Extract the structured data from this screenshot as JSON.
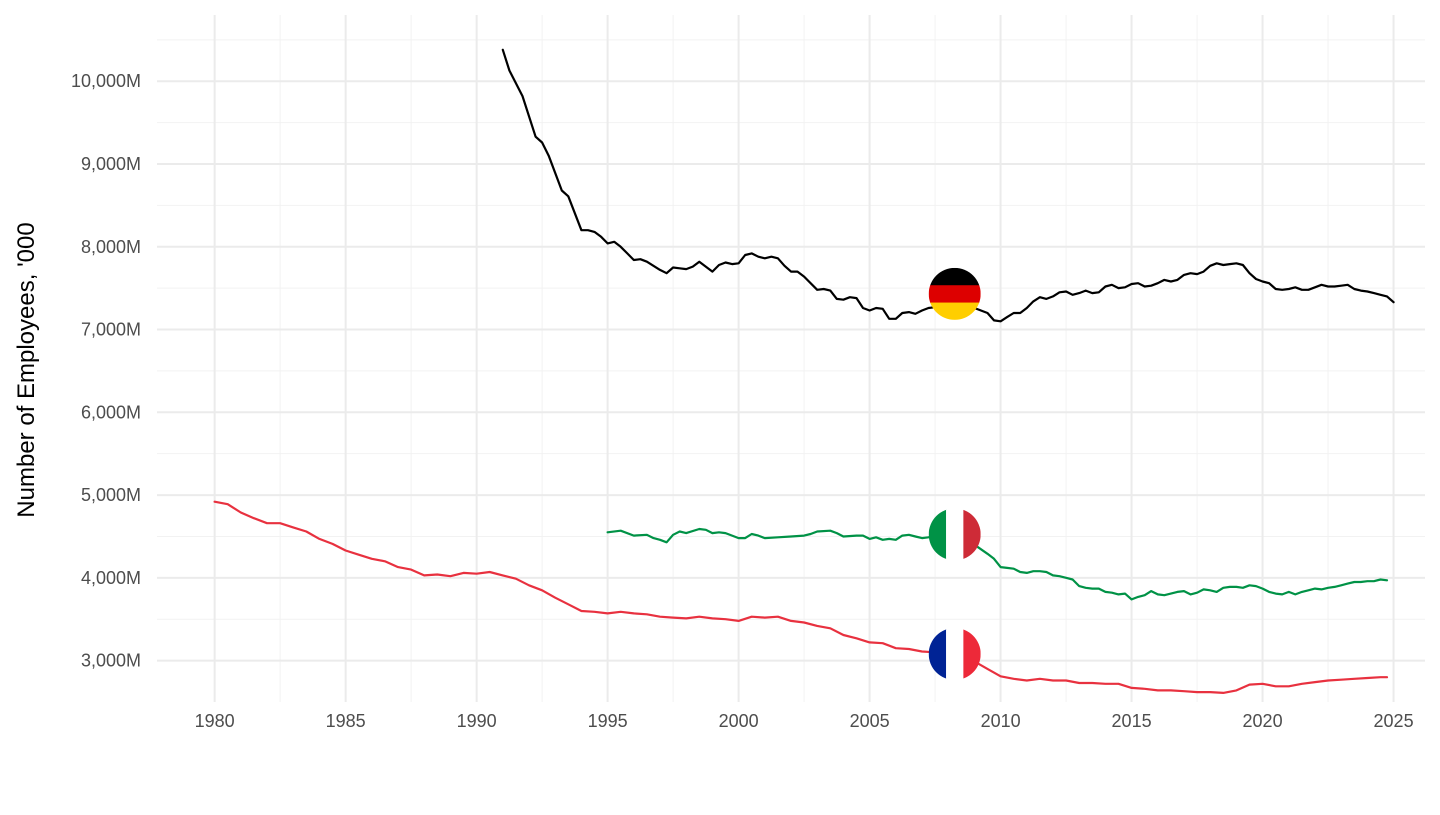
{
  "chart_data": {
    "type": "line",
    "title": "",
    "xlabel": "",
    "ylabel": "Number of Employees, '000",
    "xlim": [
      1977.8,
      2026.2
    ],
    "ylim": [
      2500,
      10800
    ],
    "x_ticks": [
      1980,
      1985,
      1990,
      1995,
      2000,
      2005,
      2010,
      2015,
      2020,
      2025
    ],
    "x_tick_labels": [
      "1980",
      "1985",
      "1990",
      "1995",
      "2000",
      "2005",
      "2010",
      "2015",
      "2020",
      "2025"
    ],
    "y_ticks": [
      3000,
      4000,
      5000,
      6000,
      7000,
      8000,
      9000,
      10000
    ],
    "y_tick_labels": [
      "3,000M",
      "4,000M",
      "5,000M",
      "6,000M",
      "7,000M",
      "8,000M",
      "9,000M",
      "10,000M"
    ],
    "grid": true,
    "legend": "none",
    "series": [
      {
        "color": "#000000",
        "flag": "germany-flag-icon",
        "flag_position": [
          2008.25,
          7430
        ],
        "x": [
          1991,
          1991.25,
          1991.75,
          1992.25,
          1992.5,
          1992.75,
          1993.25,
          1993.5,
          1994,
          1994.25,
          1994.5,
          1994.75,
          1995,
          1995.25,
          1995.5,
          1995.75,
          1996,
          1996.25,
          1996.5,
          1997,
          1997.25,
          1997.5,
          1997.75,
          1998,
          1998.25,
          1998.5,
          1999,
          1999.25,
          1999.5,
          1999.75,
          2000,
          2000.25,
          2000.5,
          2000.75,
          2001,
          2001.25,
          2001.5,
          2001.75,
          2002,
          2002.25,
          2002.5,
          2003,
          2003.25,
          2003.5,
          2003.75,
          2004,
          2004.25,
          2004.5,
          2004.75,
          2005,
          2005.25,
          2005.5,
          2005.75,
          2006,
          2006.25,
          2006.5,
          2006.75,
          2007,
          2007.25,
          2007.5,
          2007.75,
          2008,
          2008.5,
          2009,
          2009.5,
          2009.75,
          2010,
          2010.25,
          2010.5,
          2010.75,
          2011,
          2011.25,
          2011.5,
          2011.75,
          2012,
          2012.25,
          2012.5,
          2012.75,
          2013,
          2013.25,
          2013.5,
          2013.75,
          2014,
          2014.25,
          2014.5,
          2014.75,
          2015,
          2015.25,
          2015.5,
          2015.75,
          2016,
          2016.25,
          2016.5,
          2016.75,
          2017,
          2017.25,
          2017.5,
          2017.75,
          2018,
          2018.25,
          2018.5,
          2018.75,
          2019,
          2019.25,
          2019.5,
          2019.75,
          2020,
          2020.25,
          2020.5,
          2020.75,
          2021,
          2021.25,
          2021.5,
          2021.75,
          2022,
          2022.25,
          2022.5,
          2022.75,
          2023,
          2023.25,
          2023.5,
          2023.75,
          2024,
          2024.25,
          2024.5,
          2024.75,
          2025
        ],
        "values": [
          10380,
          10130,
          9820,
          9330,
          9260,
          9100,
          8680,
          8610,
          8200,
          8200,
          8180,
          8120,
          8040,
          8060,
          8000,
          7920,
          7840,
          7850,
          7820,
          7720,
          7680,
          7750,
          7740,
          7730,
          7760,
          7820,
          7700,
          7780,
          7810,
          7790,
          7800,
          7900,
          7920,
          7880,
          7860,
          7880,
          7860,
          7770,
          7700,
          7700,
          7640,
          7480,
          7490,
          7470,
          7370,
          7360,
          7390,
          7380,
          7260,
          7230,
          7260,
          7250,
          7130,
          7130,
          7200,
          7210,
          7190,
          7230,
          7260,
          7270,
          7360,
          7380,
          7330,
          7260,
          7200,
          7110,
          7100,
          7150,
          7200,
          7200,
          7260,
          7340,
          7390,
          7370,
          7400,
          7450,
          7460,
          7420,
          7440,
          7470,
          7440,
          7450,
          7520,
          7540,
          7500,
          7510,
          7550,
          7560,
          7520,
          7530,
          7560,
          7600,
          7580,
          7600,
          7660,
          7680,
          7670,
          7700,
          7770,
          7800,
          7780,
          7790,
          7800,
          7780,
          7680,
          7610,
          7580,
          7560,
          7490,
          7480,
          7490,
          7510,
          7480,
          7480,
          7510,
          7540,
          7520,
          7520,
          7530,
          7540,
          7490,
          7470,
          7460,
          7440,
          7420,
          7400,
          7330
        ]
      },
      {
        "color": "#009246",
        "flag": "italy-flag-icon",
        "flag_position": [
          2008.25,
          4525
        ],
        "x": [
          1995,
          1995.5,
          1996,
          1996.5,
          1996.75,
          1997,
          1997.25,
          1997.5,
          1997.75,
          1998,
          1998.5,
          1998.75,
          1999,
          1999.25,
          1999.5,
          1999.75,
          2000,
          2000.25,
          2000.5,
          2000.75,
          2001,
          2001.5,
          2002,
          2002.5,
          2002.75,
          2003,
          2003.5,
          2003.75,
          2004,
          2004.5,
          2004.75,
          2005,
          2005.25,
          2005.5,
          2005.75,
          2006,
          2006.25,
          2006.5,
          2006.75,
          2007,
          2007.25,
          2007.5,
          2007.75,
          2008,
          2008.5,
          2009,
          2009.5,
          2009.75,
          2010,
          2010.25,
          2010.5,
          2010.75,
          2011,
          2011.25,
          2011.5,
          2011.75,
          2012,
          2012.25,
          2012.5,
          2012.75,
          2013,
          2013.25,
          2013.5,
          2013.75,
          2014,
          2014.25,
          2014.5,
          2014.75,
          2015,
          2015.25,
          2015.5,
          2015.75,
          2016,
          2016.25,
          2016.5,
          2016.75,
          2017,
          2017.25,
          2017.5,
          2017.75,
          2018,
          2018.25,
          2018.5,
          2018.75,
          2019,
          2019.25,
          2019.5,
          2019.75,
          2020,
          2020.25,
          2020.5,
          2020.75,
          2021,
          2021.25,
          2021.5,
          2021.75,
          2022,
          2022.25,
          2022.5,
          2022.75,
          2023,
          2023.25,
          2023.5,
          2023.75,
          2024,
          2024.25,
          2024.5,
          2024.75
        ],
        "values": [
          4550,
          4570,
          4510,
          4520,
          4480,
          4460,
          4430,
          4520,
          4560,
          4540,
          4590,
          4580,
          4540,
          4550,
          4540,
          4510,
          4480,
          4480,
          4530,
          4510,
          4480,
          4490,
          4500,
          4510,
          4530,
          4560,
          4570,
          4540,
          4500,
          4510,
          4510,
          4470,
          4490,
          4460,
          4470,
          4460,
          4510,
          4520,
          4500,
          4480,
          4490,
          4510,
          4500,
          4530,
          4480,
          4400,
          4290,
          4230,
          4130,
          4120,
          4110,
          4070,
          4060,
          4080,
          4080,
          4070,
          4030,
          4020,
          4000,
          3980,
          3900,
          3880,
          3870,
          3870,
          3830,
          3820,
          3800,
          3810,
          3740,
          3770,
          3790,
          3840,
          3800,
          3790,
          3810,
          3830,
          3840,
          3800,
          3820,
          3860,
          3850,
          3830,
          3880,
          3890,
          3890,
          3880,
          3910,
          3900,
          3870,
          3830,
          3810,
          3800,
          3830,
          3800,
          3830,
          3850,
          3870,
          3860,
          3880,
          3890,
          3910,
          3930,
          3950,
          3950,
          3960,
          3960,
          3980,
          3970
        ]
      },
      {
        "color": "#e8313f",
        "flag": "france-flag-icon",
        "flag_position": [
          2008.25,
          3080
        ],
        "x": [
          1980,
          1980.5,
          1981,
          1981.5,
          1982,
          1982.5,
          1983,
          1983.5,
          1984,
          1984.5,
          1985,
          1985.5,
          1986,
          1986.5,
          1987,
          1987.5,
          1988,
          1988.5,
          1989,
          1989.5,
          1990,
          1990.5,
          1991,
          1991.5,
          1992,
          1992.5,
          1993,
          1993.5,
          1994,
          1994.5,
          1995,
          1995.5,
          1996,
          1996.5,
          1997,
          1997.5,
          1998,
          1998.5,
          1999,
          1999.5,
          2000,
          2000.5,
          2001,
          2001.5,
          2002,
          2002.5,
          2003,
          2003.5,
          2004,
          2004.5,
          2005,
          2005.5,
          2006,
          2006.5,
          2007,
          2007.5,
          2008,
          2008.5,
          2009,
          2009.5,
          2010,
          2010.5,
          2011,
          2011.5,
          2012,
          2012.5,
          2013,
          2013.5,
          2014,
          2014.5,
          2015,
          2015.5,
          2016,
          2016.5,
          2017,
          2017.5,
          2018,
          2018.5,
          2019,
          2019.5,
          2020,
          2020.5,
          2021,
          2021.5,
          2022,
          2022.5,
          2023,
          2023.5,
          2024,
          2024.5,
          2024.75
        ],
        "values": [
          4920,
          4890,
          4790,
          4720,
          4660,
          4660,
          4610,
          4560,
          4470,
          4410,
          4330,
          4280,
          4230,
          4200,
          4130,
          4100,
          4030,
          4040,
          4020,
          4060,
          4050,
          4070,
          4030,
          3990,
          3910,
          3850,
          3760,
          3680,
          3600,
          3590,
          3570,
          3590,
          3570,
          3560,
          3530,
          3520,
          3510,
          3530,
          3510,
          3500,
          3480,
          3530,
          3520,
          3530,
          3480,
          3460,
          3420,
          3390,
          3310,
          3270,
          3220,
          3210,
          3150,
          3140,
          3110,
          3100,
          3100,
          3080,
          2990,
          2900,
          2810,
          2780,
          2760,
          2780,
          2760,
          2760,
          2730,
          2730,
          2720,
          2720,
          2670,
          2660,
          2640,
          2640,
          2630,
          2620,
          2620,
          2610,
          2640,
          2710,
          2720,
          2690,
          2690,
          2720,
          2740,
          2760,
          2770,
          2780,
          2790,
          2800,
          2800
        ]
      }
    ]
  }
}
